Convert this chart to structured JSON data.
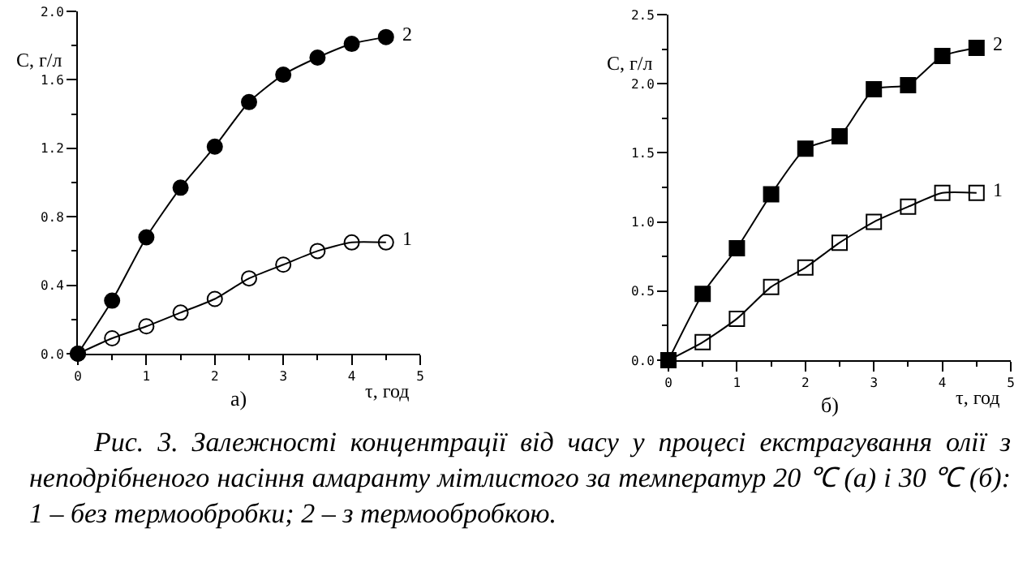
{
  "chart_data": [
    {
      "type": "line",
      "subtitle": "а)",
      "xlabel": "τ, год",
      "ylabel": "C, г/л",
      "x": [
        0,
        0.5,
        1,
        1.5,
        2,
        2.5,
        3,
        3.5,
        4,
        4.5
      ],
      "series": [
        {
          "name": "1",
          "color": "#000000",
          "marker": "circle",
          "values": [
            0,
            0.09,
            0.16,
            0.24,
            0.32,
            0.44,
            0.52,
            0.6,
            0.65,
            0.65
          ]
        },
        {
          "name": "2",
          "color": "#000000",
          "marker": "circle",
          "values": [
            0,
            0.31,
            0.68,
            0.97,
            1.21,
            1.47,
            1.63,
            1.73,
            1.81,
            1.85
          ]
        }
      ],
      "xlim": [
        0,
        5
      ],
      "xticks": [
        0,
        1,
        2,
        3,
        4,
        5
      ],
      "ylim": [
        0,
        2
      ],
      "yticks": [
        {
          "value": 0,
          "label": "0.0"
        },
        {
          "value": 0.4,
          "label": "0.4"
        },
        {
          "value": 0.8,
          "label": "0.8"
        },
        {
          "value": 1.2,
          "label": "1.2"
        },
        {
          "value": 1.6,
          "label": "1.6"
        },
        {
          "value": 2,
          "label": "2.0"
        }
      ],
      "grid": false,
      "legend": false,
      "annotations": [
        "Рис. 3. Залежності концентрації від часу у процесі екстрагування олії з неподрібненого насіння амаранту мітлистого за температур 20 ℃ (а) і 30 ℃ (б): 1 – без термообробки; 2 – з термообробкою."
      ]
    },
    {
      "type": "line",
      "subtitle": "б)",
      "xlabel": "τ, год",
      "ylabel": "C, г/л",
      "x": [
        0,
        0.5,
        1,
        1.5,
        2,
        2.5,
        3,
        3.5,
        4,
        4.5
      ],
      "series": [
        {
          "name": "1",
          "color": "#000000",
          "marker": "square",
          "values": [
            0,
            0.13,
            0.3,
            0.53,
            0.67,
            0.85,
            1.0,
            1.11,
            1.21,
            1.21
          ]
        },
        {
          "name": "2",
          "color": "#000000",
          "marker": "square",
          "values": [
            0,
            0.48,
            0.81,
            1.2,
            1.53,
            1.62,
            1.96,
            1.99,
            2.2,
            2.26
          ]
        }
      ],
      "xlim": [
        0,
        5
      ],
      "xticks": [
        0,
        1,
        2,
        3,
        4,
        5
      ],
      "ylim": [
        0,
        2.5
      ],
      "yticks": [
        {
          "value": 0,
          "label": "0.0"
        },
        {
          "value": 0.5,
          "label": "0.5"
        },
        {
          "value": 1,
          "label": "1.0"
        },
        {
          "value": 1.5,
          "label": "1.5"
        },
        {
          "value": 2,
          "label": "2.0"
        },
        {
          "value": 2.5,
          "label": "2.5"
        }
      ],
      "grid": false,
      "legend": false
    }
  ]
}
